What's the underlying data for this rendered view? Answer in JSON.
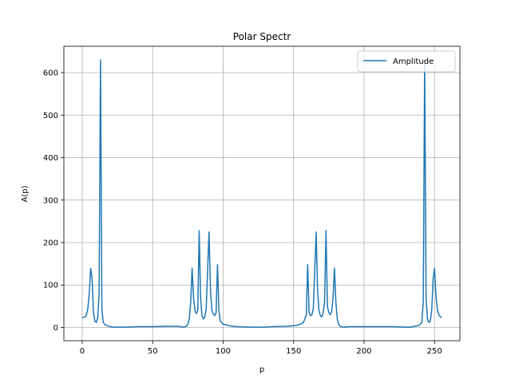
{
  "chart_data": {
    "type": "line",
    "title": "Polar Spectr",
    "xlabel": "p",
    "ylabel": "A(p)",
    "xlim": [
      -13,
      268
    ],
    "ylim": [
      -31,
      662
    ],
    "xticks": [
      0,
      50,
      100,
      150,
      200,
      250
    ],
    "yticks": [
      0,
      100,
      200,
      300,
      400,
      500,
      600
    ],
    "grid": true,
    "legend_position": "top-right",
    "series": [
      {
        "name": "Amplitude",
        "color": "#1f77b4",
        "points": [
          [
            0,
            23
          ],
          [
            2,
            25
          ],
          [
            3,
            30
          ],
          [
            4,
            45
          ],
          [
            5,
            80
          ],
          [
            6,
            139
          ],
          [
            7,
            115
          ],
          [
            8,
            35
          ],
          [
            9,
            15
          ],
          [
            10,
            12
          ],
          [
            11,
            22
          ],
          [
            12,
            80
          ],
          [
            13,
            630
          ],
          [
            14,
            40
          ],
          [
            15,
            12
          ],
          [
            16,
            7
          ],
          [
            18,
            4
          ],
          [
            20,
            2
          ],
          [
            23,
            1
          ],
          [
            30,
            1
          ],
          [
            40,
            2
          ],
          [
            50,
            2
          ],
          [
            60,
            3
          ],
          [
            68,
            3
          ],
          [
            70,
            2
          ],
          [
            72,
            1
          ],
          [
            74,
            3
          ],
          [
            75,
            8
          ],
          [
            76,
            20
          ],
          [
            77,
            60
          ],
          [
            78,
            140
          ],
          [
            79,
            70
          ],
          [
            80,
            40
          ],
          [
            81,
            33
          ],
          [
            82,
            40
          ],
          [
            83,
            228
          ],
          [
            84,
            70
          ],
          [
            85,
            28
          ],
          [
            86,
            20
          ],
          [
            87,
            25
          ],
          [
            88,
            45
          ],
          [
            90,
            225
          ],
          [
            91,
            90
          ],
          [
            92,
            40
          ],
          [
            93,
            32
          ],
          [
            94,
            28
          ],
          [
            95,
            35
          ],
          [
            96,
            148
          ],
          [
            97,
            40
          ],
          [
            98,
            15
          ],
          [
            100,
            8
          ],
          [
            105,
            4
          ],
          [
            110,
            2
          ],
          [
            120,
            1
          ],
          [
            128,
            1
          ],
          [
            135,
            2
          ],
          [
            145,
            3
          ],
          [
            152,
            5
          ],
          [
            155,
            8
          ],
          [
            157,
            12
          ],
          [
            159,
            30
          ],
          [
            160,
            148
          ],
          [
            161,
            35
          ],
          [
            162,
            28
          ],
          [
            163,
            30
          ],
          [
            164,
            45
          ],
          [
            166,
            225
          ],
          [
            167,
            90
          ],
          [
            168,
            40
          ],
          [
            169,
            28
          ],
          [
            170,
            25
          ],
          [
            171,
            35
          ],
          [
            172,
            60
          ],
          [
            173,
            228
          ],
          [
            174,
            50
          ],
          [
            175,
            35
          ],
          [
            176,
            30
          ],
          [
            177,
            38
          ],
          [
            178,
            70
          ],
          [
            179,
            140
          ],
          [
            180,
            60
          ],
          [
            181,
            20
          ],
          [
            182,
            8
          ],
          [
            183,
            3
          ],
          [
            185,
            1
          ],
          [
            190,
            2
          ],
          [
            200,
            2
          ],
          [
            210,
            2
          ],
          [
            220,
            2
          ],
          [
            230,
            1
          ],
          [
            233,
            1
          ],
          [
            236,
            3
          ],
          [
            239,
            5
          ],
          [
            241,
            12
          ],
          [
            242,
            60
          ],
          [
            243,
            630
          ],
          [
            244,
            70
          ],
          [
            245,
            20
          ],
          [
            246,
            12
          ],
          [
            247,
            15
          ],
          [
            248,
            40
          ],
          [
            249,
            115
          ],
          [
            250,
            139
          ],
          [
            251,
            75
          ],
          [
            252,
            42
          ],
          [
            253,
            30
          ],
          [
            254,
            26
          ],
          [
            255,
            23
          ]
        ]
      }
    ]
  }
}
